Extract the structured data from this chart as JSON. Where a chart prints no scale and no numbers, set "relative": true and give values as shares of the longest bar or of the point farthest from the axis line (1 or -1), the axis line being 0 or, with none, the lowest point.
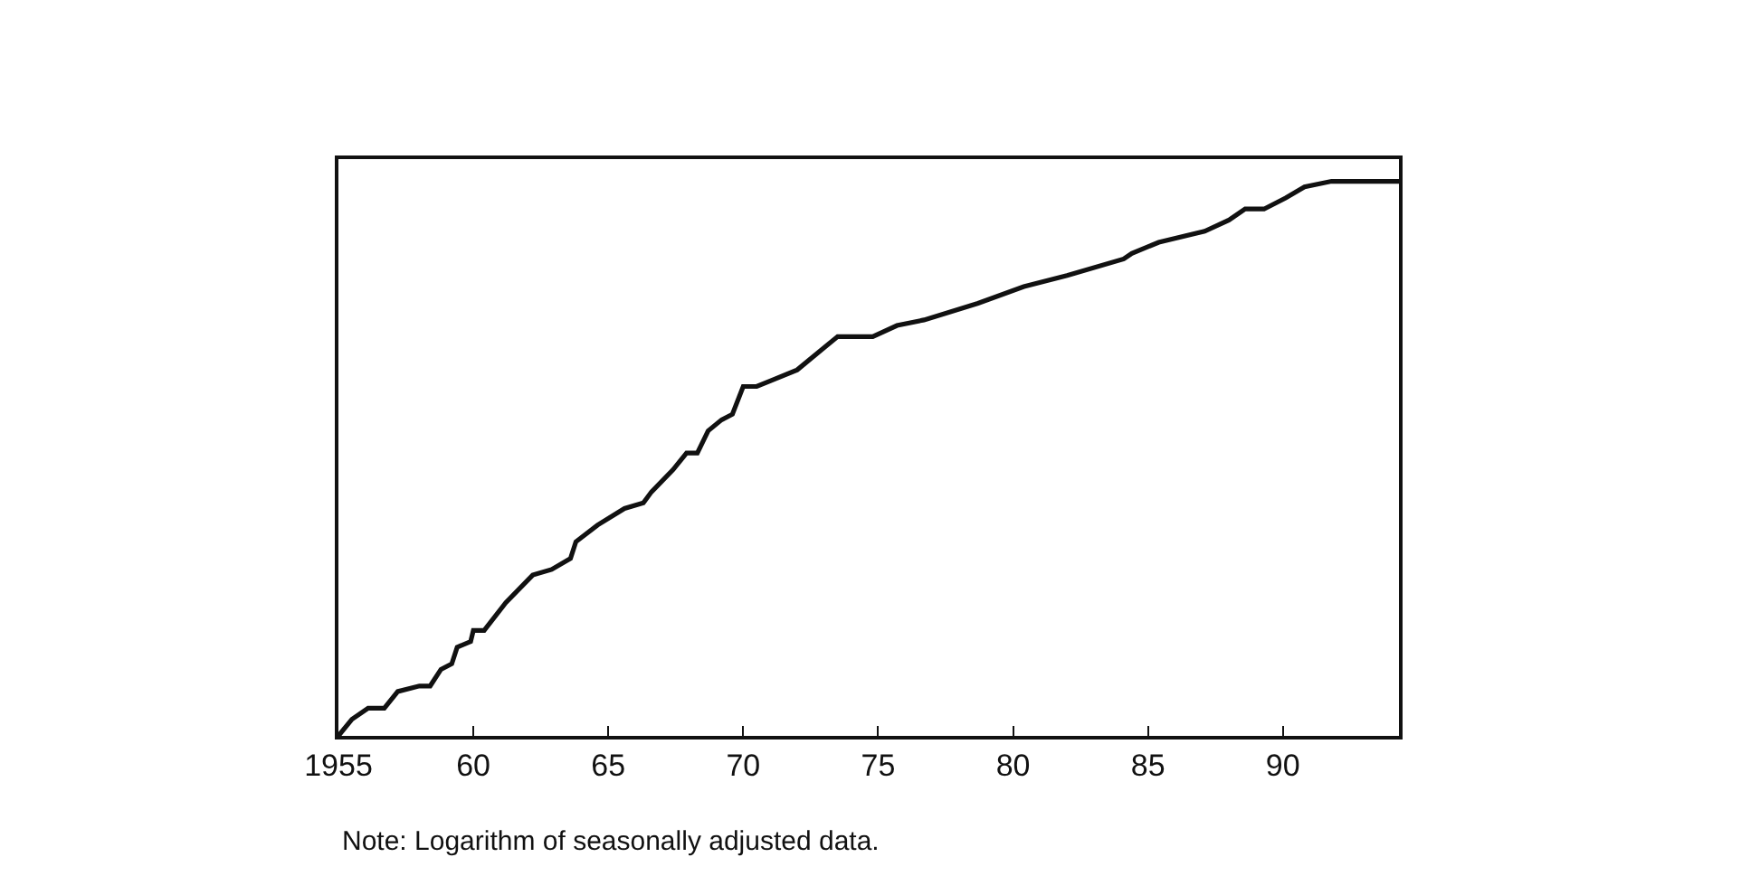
{
  "chart_data": {
    "type": "line",
    "relative": true,
    "x": [
      1955,
      1955.5,
      1956.1,
      1956.7,
      1957.2,
      1958,
      1958.4,
      1958.8,
      1959.2,
      1959.4,
      1959.9,
      1960,
      1960.4,
      1961.2,
      1962.2,
      1962.9,
      1963.6,
      1963.8,
      1964.6,
      1965.6,
      1966.3,
      1966.6,
      1967.4,
      1967.9,
      1968.3,
      1968.7,
      1969.2,
      1969.6,
      1970,
      1970.5,
      1971,
      1972,
      1973,
      1973.5,
      1974,
      1974.8,
      1975.7,
      1976.7,
      1978.7,
      1980.4,
      1982,
      1984.1,
      1984.4,
      1985.4,
      1987.1,
      1988,
      1988.6,
      1989.3,
      1990.1,
      1990.8,
      1991.8,
      1994.3
    ],
    "series": [
      {
        "color": "#111111",
        "values": [
          0,
          0.03,
          0.05,
          0.05,
          0.08,
          0.09,
          0.09,
          0.12,
          0.13,
          0.16,
          0.17,
          0.19,
          0.19,
          0.24,
          0.29,
          0.3,
          0.32,
          0.35,
          0.38,
          0.41,
          0.42,
          0.44,
          0.48,
          0.51,
          0.51,
          0.55,
          0.57,
          0.58,
          0.63,
          0.63,
          0.64,
          0.66,
          0.7,
          0.72,
          0.72,
          0.72,
          0.74,
          0.75,
          0.78,
          0.81,
          0.83,
          0.86,
          0.87,
          0.89,
          0.91,
          0.93,
          0.95,
          0.95,
          0.97,
          0.99,
          1,
          1
        ]
      }
    ],
    "xlim": [
      1955,
      1994.3
    ],
    "xticks": [
      1955,
      {
        "value": 1960,
        "label": "60"
      },
      {
        "value": 1965,
        "label": "65"
      },
      {
        "value": 1970,
        "label": "70"
      },
      {
        "value": 1975,
        "label": "75"
      },
      {
        "value": 1980,
        "label": "80"
      },
      {
        "value": 1985,
        "label": "85"
      },
      {
        "value": 1990,
        "label": "90"
      }
    ],
    "annotations": [
      "Note: Logarithm of seasonally adjusted data."
    ],
    "marker": "none",
    "line_style": "solid"
  }
}
